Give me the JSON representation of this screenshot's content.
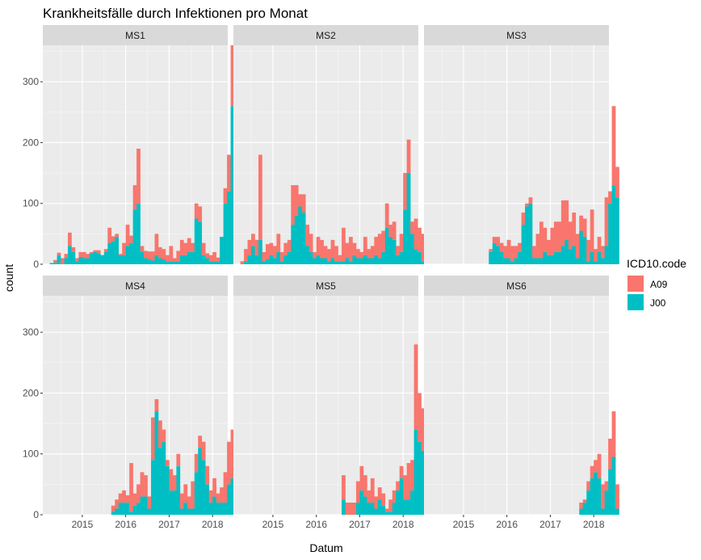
{
  "chart_data": {
    "type": "bar",
    "stacked": true,
    "faceted": true,
    "title": "Krankheitsfälle durch Infektionen pro Monat",
    "xlabel": "Datum",
    "ylabel": "count",
    "x_ticks": [
      "2015",
      "2016",
      "2017",
      "2018"
    ],
    "y_ticks": [
      "0",
      "100",
      "200",
      "300"
    ],
    "x_range": [
      2014.09,
      2018.35
    ],
    "y_range": [
      0,
      360
    ],
    "legend": {
      "title": "ICD10.code",
      "position": "right",
      "entries": [
        {
          "label": "A09",
          "color": "#F8766D"
        },
        {
          "label": "J00",
          "color": "#00BFC4"
        }
      ]
    },
    "colors": {
      "A09": "#F8766D",
      "J00": "#00BFC4"
    },
    "x_start": "2014-04",
    "bin": "month",
    "stack_order": [
      "J00",
      "A09"
    ],
    "panels": [
      {
        "name": "MS1",
        "A09": [
          0,
          4,
          4,
          10,
          7,
          22,
          8,
          5,
          8,
          10,
          7,
          2,
          3,
          5,
          0,
          5,
          25,
          8,
          5,
          2,
          20,
          35,
          12,
          40,
          90,
          10,
          12,
          13,
          15,
          35,
          18,
          17,
          10,
          25,
          5,
          17,
          25,
          20,
          23,
          15,
          25,
          25,
          20,
          8,
          10,
          15,
          6,
          0,
          25,
          60,
          100,
          95
        ],
        "J00": [
          2,
          3,
          15,
          0,
          10,
          30,
          20,
          5,
          12,
          10,
          10,
          18,
          20,
          18,
          15,
          20,
          35,
          38,
          45,
          15,
          15,
          30,
          35,
          90,
          100,
          20,
          10,
          8,
          6,
          15,
          10,
          8,
          5,
          5,
          5,
          5,
          15,
          15,
          20,
          20,
          75,
          70,
          15,
          10,
          5,
          5,
          5,
          45,
          100,
          120,
          260,
          90
        ]
      },
      {
        "name": "MS2",
        "A09": [
          5,
          20,
          25,
          20,
          25,
          140,
          15,
          25,
          20,
          20,
          30,
          15,
          20,
          20,
          65,
          50,
          20,
          30,
          35,
          30,
          10,
          30,
          30,
          20,
          20,
          30,
          25,
          10,
          55,
          25,
          40,
          20,
          15,
          10,
          30,
          15,
          20,
          30,
          40,
          35,
          40,
          20,
          30,
          15,
          30,
          60,
          55,
          20,
          50,
          40,
          45,
          60
        ],
        "J00": [
          0,
          5,
          15,
          30,
          15,
          40,
          5,
          8,
          15,
          10,
          20,
          5,
          15,
          20,
          65,
          80,
          95,
          85,
          30,
          20,
          10,
          15,
          10,
          10,
          5,
          10,
          5,
          5,
          5,
          10,
          5,
          15,
          10,
          10,
          15,
          10,
          10,
          15,
          10,
          20,
          60,
          45,
          40,
          15,
          20,
          90,
          150,
          50,
          25,
          20,
          5,
          10
        ]
      },
      {
        "name": "MS3",
        "A09": [
          0,
          0,
          0,
          0,
          0,
          0,
          0,
          0,
          0,
          0,
          0,
          0,
          0,
          0,
          0,
          0,
          5,
          10,
          15,
          15,
          20,
          30,
          25,
          20,
          15,
          20,
          5,
          10,
          20,
          40,
          60,
          40,
          25,
          45,
          50,
          50,
          75,
          65,
          45,
          55,
          40,
          25,
          30,
          35,
          70,
          20,
          25,
          20,
          80,
          20,
          130,
          50
        ],
        "J00": [
          0,
          0,
          0,
          0,
          0,
          0,
          0,
          0,
          0,
          0,
          0,
          0,
          0,
          0,
          0,
          0,
          20,
          35,
          30,
          20,
          10,
          10,
          5,
          10,
          20,
          65,
          95,
          100,
          10,
          10,
          10,
          20,
          15,
          15,
          20,
          20,
          30,
          40,
          25,
          30,
          10,
          55,
          45,
          5,
          20,
          5,
          20,
          10,
          30,
          100,
          130,
          110
        ]
      },
      {
        "name": "MS4",
        "A09": [
          0,
          0,
          0,
          0,
          0,
          0,
          0,
          0,
          0,
          0,
          0,
          0,
          0,
          0,
          0,
          0,
          0,
          10,
          15,
          15,
          20,
          12,
          80,
          20,
          30,
          40,
          35,
          20,
          70,
          20,
          45,
          20,
          10,
          35,
          25,
          20,
          25,
          30,
          20,
          45,
          30,
          20,
          30,
          30,
          20,
          30,
          15,
          25,
          50,
          70,
          80,
          50
        ],
        "J00": [
          0,
          0,
          0,
          0,
          0,
          0,
          0,
          0,
          0,
          0,
          0,
          0,
          0,
          0,
          0,
          0,
          0,
          5,
          10,
          20,
          20,
          20,
          5,
          15,
          20,
          30,
          30,
          10,
          90,
          170,
          110,
          120,
          80,
          40,
          40,
          80,
          10,
          20,
          10,
          10,
          70,
          110,
          90,
          50,
          20,
          30,
          20,
          20,
          20,
          50,
          60,
          65
        ]
      },
      {
        "name": "MS5",
        "A09": [
          0,
          0,
          0,
          0,
          0,
          0,
          0,
          0,
          0,
          0,
          0,
          0,
          0,
          0,
          0,
          0,
          0,
          0,
          0,
          0,
          0,
          0,
          0,
          0,
          0,
          0,
          0,
          0,
          40,
          20,
          20,
          20,
          35,
          40,
          35,
          20,
          40,
          20,
          20,
          20,
          5,
          20,
          20,
          15,
          20,
          40,
          60,
          50,
          140,
          80,
          70,
          20
        ],
        "J00": [
          0,
          0,
          0,
          0,
          0,
          0,
          0,
          0,
          0,
          0,
          0,
          0,
          0,
          0,
          0,
          0,
          0,
          0,
          0,
          0,
          0,
          0,
          0,
          0,
          0,
          0,
          0,
          0,
          25,
          0,
          0,
          0,
          20,
          40,
          30,
          20,
          20,
          10,
          25,
          15,
          5,
          5,
          20,
          40,
          60,
          25,
          25,
          40,
          140,
          120,
          105,
          20
        ]
      },
      {
        "name": "MS6",
        "A09": [
          0,
          0,
          0,
          0,
          0,
          0,
          0,
          0,
          0,
          0,
          0,
          0,
          0,
          0,
          0,
          0,
          0,
          0,
          0,
          0,
          0,
          0,
          0,
          0,
          0,
          0,
          0,
          0,
          0,
          0,
          0,
          0,
          0,
          0,
          0,
          0,
          0,
          0,
          0,
          0,
          0,
          10,
          5,
          15,
          20,
          20,
          40,
          40,
          15,
          50,
          75,
          40
        ],
        "J00": [
          0,
          0,
          0,
          0,
          0,
          0,
          0,
          0,
          0,
          0,
          0,
          0,
          0,
          0,
          0,
          0,
          0,
          0,
          0,
          0,
          0,
          0,
          0,
          0,
          0,
          0,
          0,
          0,
          0,
          0,
          0,
          0,
          0,
          0,
          0,
          0,
          0,
          0,
          0,
          0,
          0,
          10,
          20,
          40,
          60,
          70,
          60,
          10,
          40,
          75,
          95,
          10
        ]
      }
    ]
  }
}
